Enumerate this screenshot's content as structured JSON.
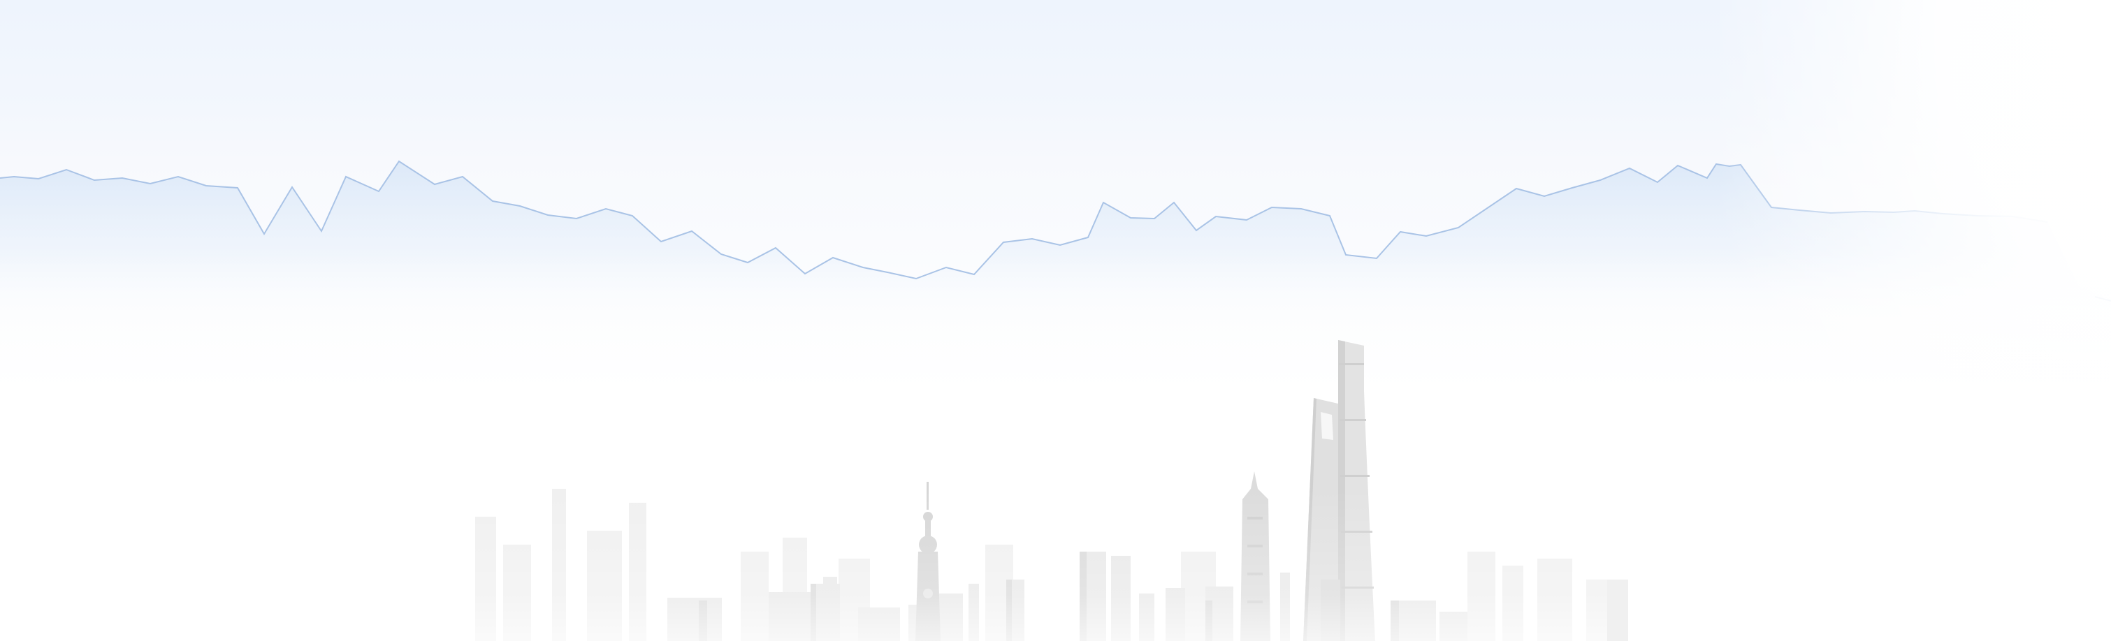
{
  "banner": {
    "colors": {
      "sky_top": "#eef4fd",
      "wave_fill": "#dbe8f8",
      "wave_line": "#a9c3e6",
      "building_light": "#e9e9e9",
      "building_dark": "#d4d4d4"
    },
    "decorations": [
      "blue-wave-line",
      "city-skyline"
    ]
  }
}
